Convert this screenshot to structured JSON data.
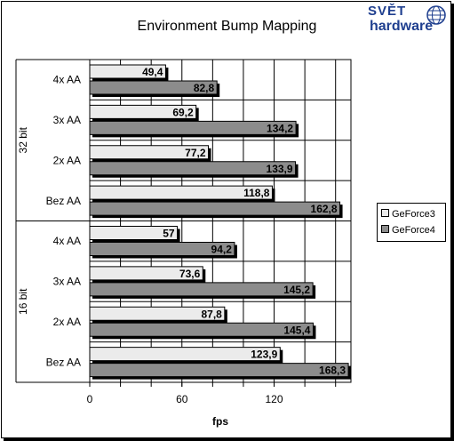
{
  "chart_data": {
    "type": "bar",
    "orientation": "horizontal",
    "title": "Environment Bump Mapping",
    "xlabel": "fps",
    "xlim": [
      0,
      170
    ],
    "xticks": [
      0,
      60,
      120
    ],
    "groups": [
      {
        "label": "32 bit",
        "categories": [
          "4x AA",
          "3x AA",
          "2x AA",
          "Bez AA"
        ]
      },
      {
        "label": "16 bit",
        "categories": [
          "4x AA",
          "3x AA",
          "2x AA",
          "Bez AA"
        ]
      }
    ],
    "categories": [
      "4x AA",
      "3x AA",
      "2x AA",
      "Bez AA",
      "4x AA",
      "3x AA",
      "2x AA",
      "Bez AA"
    ],
    "series": [
      {
        "name": "GeForce3",
        "values": [
          49.4,
          69.2,
          77.2,
          118.8,
          57,
          73.6,
          87.8,
          123.9
        ],
        "labels": [
          "49,4",
          "69,2",
          "77,2",
          "118,8",
          "57",
          "73,6",
          "87,8",
          "123,9"
        ],
        "color": "#ebebeb"
      },
      {
        "name": "GeForce4",
        "values": [
          82.8,
          134.2,
          133.9,
          162.8,
          94.2,
          145.2,
          145.4,
          168.3
        ],
        "labels": [
          "82,8",
          "134,2",
          "133,9",
          "162,8",
          "94,2",
          "145,2",
          "145,4",
          "168,3"
        ],
        "color": "#8c8c8c"
      }
    ],
    "grid": true,
    "legend_position": "right"
  },
  "logo": {
    "top": "SVĚT",
    "bottom": "hardware"
  }
}
